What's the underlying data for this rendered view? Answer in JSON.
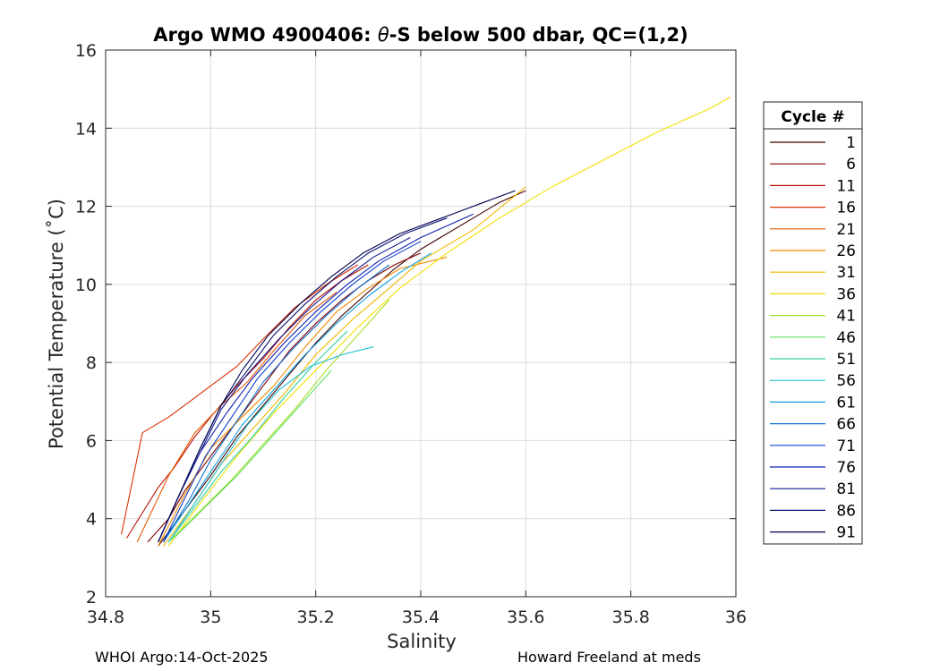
{
  "chart_data": {
    "type": "line",
    "title_prefix": "Argo WMO 4900406: ",
    "title_theta": "θ",
    "title_suffix": "-S below 500 dbar,  QC=(1,2)",
    "xlabel": "Salinity",
    "ylabel": "Potential Temperature (˚C)",
    "xlim": [
      34.8,
      36
    ],
    "ylim": [
      2,
      16
    ],
    "xticks": [
      "34.8",
      "35",
      "35.2",
      "35.4",
      "35.6",
      "35.8",
      "36"
    ],
    "yticks": [
      "2",
      "4",
      "6",
      "8",
      "10",
      "12",
      "14",
      "16"
    ],
    "grid": true,
    "legend": {
      "title": "Cycle #",
      "placement": "outside-right",
      "entries": [
        "1",
        "6",
        "11",
        "16",
        "21",
        "26",
        "31",
        "36",
        "41",
        "46",
        "51",
        "56",
        "61",
        "66",
        "71",
        "76",
        "81",
        "86",
        "91"
      ],
      "colors": [
        "#400000",
        "#800000",
        "#b81000",
        "#d83000",
        "#e85800",
        "#f08800",
        "#f0b800",
        "#f0e000",
        "#a8e030",
        "#60e060",
        "#30d0a0",
        "#20c0d0",
        "#10a0e0",
        "#1070d0",
        "#1040d0",
        "#1020b0",
        "#101890",
        "#081070",
        "#000050"
      ]
    },
    "series": [
      {
        "name": "1",
        "x": [
          34.9,
          34.95,
          35.0,
          35.05,
          35.1,
          35.15,
          35.2,
          35.25,
          35.3,
          35.35,
          35.4,
          35.45,
          35.5,
          35.55,
          35.6
        ],
        "y": [
          3.3,
          4.2,
          5.1,
          6.1,
          6.9,
          7.7,
          8.5,
          9.2,
          9.8,
          10.4,
          10.9,
          11.3,
          11.7,
          12.1,
          12.4
        ]
      },
      {
        "name": "6",
        "x": [
          34.88,
          34.92,
          34.95,
          35.0,
          35.05,
          35.1,
          35.15,
          35.2,
          35.25,
          35.3,
          35.35,
          35.4
        ],
        "y": [
          3.4,
          4.0,
          4.7,
          5.6,
          6.5,
          7.4,
          8.3,
          9.0,
          9.6,
          10.1,
          10.5,
          10.8
        ]
      },
      {
        "name": "11",
        "x": [
          34.84,
          34.9,
          34.93,
          34.97,
          35.0,
          35.05,
          35.1,
          35.15,
          35.2,
          35.25,
          35.3
        ],
        "y": [
          3.5,
          4.8,
          5.3,
          6.1,
          6.6,
          7.4,
          8.1,
          8.9,
          9.6,
          10.1,
          10.5
        ]
      },
      {
        "name": "16",
        "x": [
          34.83,
          34.87,
          34.92,
          34.96,
          35.0,
          35.05,
          35.1,
          35.16,
          35.22,
          35.28
        ],
        "y": [
          3.6,
          6.2,
          6.6,
          7.0,
          7.4,
          7.9,
          8.6,
          9.4,
          10.0,
          10.5
        ]
      },
      {
        "name": "21",
        "x": [
          34.86,
          34.92,
          34.97,
          35.02,
          35.07,
          35.12,
          35.18,
          35.24
        ],
        "y": [
          3.4,
          5.1,
          6.2,
          6.9,
          7.5,
          8.3,
          9.2,
          9.8
        ]
      },
      {
        "name": "26",
        "x": [
          34.9,
          34.95,
          35.0,
          35.06,
          35.12,
          35.18,
          35.24,
          35.3,
          35.36,
          35.45
        ],
        "y": [
          3.3,
          4.6,
          5.8,
          6.6,
          7.4,
          8.4,
          9.3,
          9.9,
          10.4,
          10.7
        ]
      },
      {
        "name": "31",
        "x": [
          34.91,
          34.97,
          35.02,
          35.08,
          35.14,
          35.2,
          35.27,
          35.34,
          35.4,
          35.5,
          35.6
        ],
        "y": [
          3.3,
          4.4,
          5.4,
          6.3,
          7.2,
          8.2,
          9.1,
          9.9,
          10.6,
          11.4,
          12.5
        ]
      },
      {
        "name": "36",
        "x": [
          34.92,
          34.98,
          35.05,
          35.12,
          35.2,
          35.28,
          35.36,
          35.45,
          35.55,
          35.65,
          35.75,
          35.85,
          35.95,
          35.99
        ],
        "y": [
          3.3,
          4.4,
          5.6,
          6.7,
          7.8,
          8.9,
          9.9,
          10.8,
          11.7,
          12.5,
          13.2,
          13.9,
          14.5,
          14.8
        ]
      },
      {
        "name": "41",
        "x": [
          34.92,
          34.98,
          35.04,
          35.1,
          35.16,
          35.22,
          35.28,
          35.34
        ],
        "y": [
          3.4,
          4.2,
          5.0,
          5.9,
          6.8,
          7.8,
          8.7,
          9.6
        ]
      },
      {
        "name": "46",
        "x": [
          34.93,
          34.99,
          35.05,
          35.11,
          35.17,
          35.23
        ],
        "y": [
          3.5,
          4.3,
          5.1,
          6.0,
          6.9,
          7.8
        ]
      },
      {
        "name": "51",
        "x": [
          34.92,
          34.97,
          35.02,
          35.08,
          35.14,
          35.2,
          35.26
        ],
        "y": [
          3.4,
          4.3,
          5.2,
          6.1,
          7.1,
          8.0,
          8.8
        ]
      },
      {
        "name": "56",
        "x": [
          34.92,
          34.97,
          35.02,
          35.07,
          35.13,
          35.19,
          35.25,
          35.31
        ],
        "y": [
          3.4,
          4.4,
          5.4,
          6.4,
          7.3,
          7.9,
          8.2,
          8.4
        ]
      },
      {
        "name": "61",
        "x": [
          34.91,
          34.96,
          35.01,
          35.06,
          35.12,
          35.18,
          35.24,
          35.3,
          35.36,
          35.42
        ],
        "y": [
          3.4,
          4.4,
          5.4,
          6.4,
          7.3,
          8.2,
          9.0,
          9.7,
          10.3,
          10.8
        ]
      },
      {
        "name": "66",
        "x": [
          34.91,
          34.96,
          35.0,
          35.05,
          35.1,
          35.16,
          35.22,
          35.28,
          35.34
        ],
        "y": [
          3.4,
          4.5,
          5.5,
          6.5,
          7.5,
          8.4,
          9.2,
          9.9,
          10.5
        ]
      },
      {
        "name": "71",
        "x": [
          34.91,
          34.95,
          34.99,
          35.04,
          35.09,
          35.15,
          35.21,
          35.27,
          35.33,
          35.4
        ],
        "y": [
          3.4,
          4.5,
          5.6,
          6.6,
          7.6,
          8.5,
          9.3,
          10.0,
          10.6,
          11.1
        ]
      },
      {
        "name": "76",
        "x": [
          34.9,
          34.94,
          34.98,
          35.03,
          35.08,
          35.14,
          35.2,
          35.26,
          35.32,
          35.4,
          35.5
        ],
        "y": [
          3.4,
          4.6,
          5.7,
          6.7,
          7.6,
          8.5,
          9.3,
          10.0,
          10.6,
          11.2,
          11.8
        ]
      },
      {
        "name": "81",
        "x": [
          34.9,
          34.94,
          34.98,
          35.02,
          35.07,
          35.13,
          35.19,
          35.25,
          35.31,
          35.38
        ],
        "y": [
          3.4,
          4.6,
          5.7,
          6.8,
          7.7,
          8.6,
          9.4,
          10.1,
          10.7,
          11.2
        ]
      },
      {
        "name": "86",
        "x": [
          34.9,
          34.94,
          34.98,
          35.02,
          35.07,
          35.12,
          35.18,
          35.24,
          35.3,
          35.37,
          35.45
        ],
        "y": [
          3.4,
          4.6,
          5.8,
          6.9,
          7.8,
          8.7,
          9.5,
          10.2,
          10.8,
          11.3,
          11.7
        ]
      },
      {
        "name": "91",
        "x": [
          34.9,
          34.94,
          34.98,
          35.02,
          35.06,
          35.11,
          35.17,
          35.23,
          35.29,
          35.36,
          35.44,
          35.52,
          35.58
        ],
        "y": [
          3.4,
          4.6,
          5.8,
          6.9,
          7.8,
          8.7,
          9.5,
          10.2,
          10.8,
          11.3,
          11.7,
          12.1,
          12.4
        ]
      }
    ]
  },
  "footer": {
    "left": "WHOI Argo:14-Oct-2025",
    "right": "Howard Freeland at meds"
  }
}
